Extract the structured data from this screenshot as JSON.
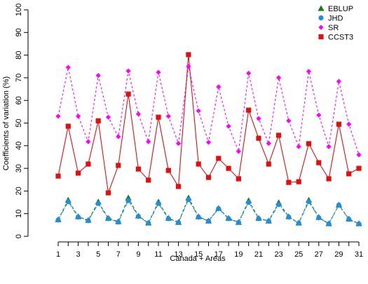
{
  "chart_data": {
    "type": "line",
    "x_label": "Canada + Areas",
    "y_label": "Coefficients of variation (%)",
    "x": [
      1,
      2,
      3,
      4,
      5,
      6,
      7,
      8,
      9,
      10,
      11,
      12,
      13,
      14,
      15,
      16,
      17,
      18,
      19,
      20,
      21,
      22,
      23,
      24,
      25,
      26,
      27,
      28,
      29,
      30,
      31
    ],
    "series": [
      {
        "name": "EBLUP",
        "color": "#1b7a1b",
        "marker": "triangle",
        "dash": "4,3",
        "values": [
          7.4,
          16,
          8.7,
          7.1,
          15.2,
          8,
          6.5,
          17,
          9,
          5.9,
          15.2,
          8,
          6.2,
          17,
          8.7,
          6.8,
          12.4,
          8,
          6.2,
          15.8,
          8,
          6.8,
          14.9,
          8.7,
          5.9,
          16,
          8.4,
          5.6,
          13.9,
          7.7,
          5.6
        ]
      },
      {
        "name": "JHD",
        "color": "#1e8fe0",
        "marker": "circle",
        "dash": "6,2,1,2",
        "values": [
          7.2,
          15.3,
          8.5,
          6.9,
          14.5,
          7.8,
          6.3,
          15.8,
          8.8,
          5.8,
          14.5,
          7.8,
          6.1,
          16.2,
          8.5,
          6.7,
          12.2,
          7.8,
          6.1,
          15,
          7.8,
          6.7,
          14,
          8.5,
          5.8,
          15.3,
          8.2,
          5.5,
          13.8,
          7.5,
          5.5
        ]
      },
      {
        "name": "SR",
        "color": "#ff00ff",
        "marker": "diamond",
        "dash": "3,3",
        "values": [
          53,
          74.6,
          53,
          41.8,
          71,
          52.6,
          44,
          73,
          54,
          41.8,
          72.4,
          53,
          41,
          75,
          55.4,
          41.5,
          66,
          48.6,
          37.5,
          72,
          52,
          41,
          70,
          51,
          39.6,
          72.8,
          53.5,
          39.6,
          68.4,
          49.5,
          36
        ]
      },
      {
        "name": "CCST3",
        "color": "#e01010",
        "marker": "square",
        "dash": "",
        "values": [
          26.6,
          48.6,
          27.9,
          31.9,
          51,
          19.2,
          31.3,
          62.8,
          29.7,
          24.8,
          52.6,
          29.1,
          22,
          80.2,
          31.9,
          26,
          34.4,
          30,
          25.4,
          55.7,
          43.3,
          31.9,
          44.6,
          23.8,
          24.1,
          40.9,
          32.5,
          25.4,
          49.5,
          27.6,
          30
        ]
      }
    ],
    "xlim": [
      1,
      31
    ],
    "xticks": [
      1,
      3,
      5,
      7,
      9,
      11,
      13,
      15,
      17,
      19,
      21,
      23,
      25,
      27,
      29,
      31
    ],
    "ylim": [
      0,
      100
    ],
    "yticks": [
      0,
      10,
      20,
      30,
      40,
      50,
      60,
      70,
      80,
      90,
      100
    ],
    "grid": false,
    "legend": "top-right"
  }
}
